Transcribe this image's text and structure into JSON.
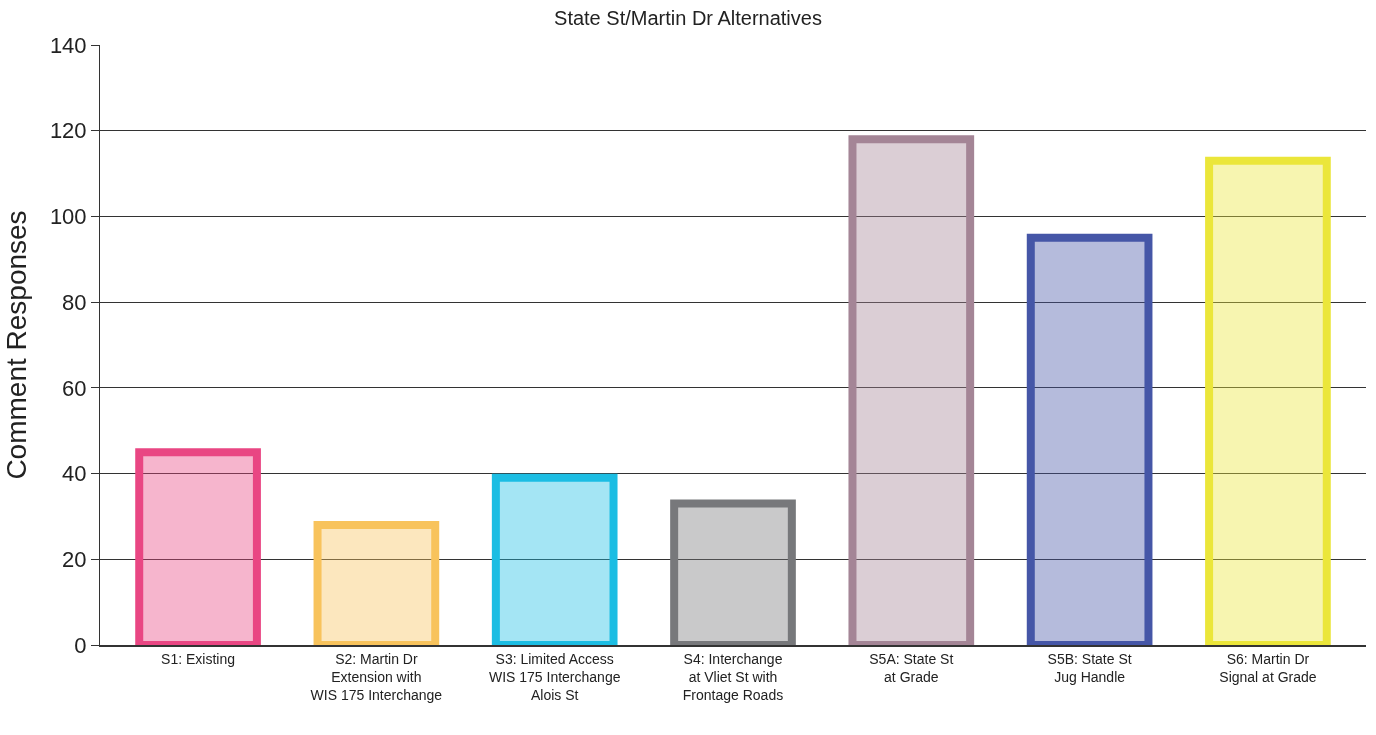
{
  "chart_data": {
    "type": "bar",
    "title": "State St/Martin Dr Alternatives",
    "ylabel": "Comment Responses",
    "categories": [
      "S1: Existing",
      "S2: Martin Dr\nExtension with\nWIS 175 Interchange",
      "S3: Limited Access\nWIS 175 Interchange\nAlois St",
      "S4: Interchange\nat Vliet St with\nFrontage Roads",
      "S5A: State St\nat Grade",
      "S5B: State St\nJug Handle",
      "S6: Martin Dr\nSignal at Grade"
    ],
    "values": [
      45,
      28,
      39,
      33,
      118,
      95,
      113
    ],
    "colors": [
      "#e94683",
      "#f8c35c",
      "#1bbde3",
      "#77787b",
      "#a48596",
      "#4556a7",
      "#ebe63a"
    ],
    "ylim": [
      0,
      140
    ],
    "yticks": [
      0,
      20,
      40,
      60,
      80,
      100,
      120,
      140
    ],
    "grid": "y"
  }
}
